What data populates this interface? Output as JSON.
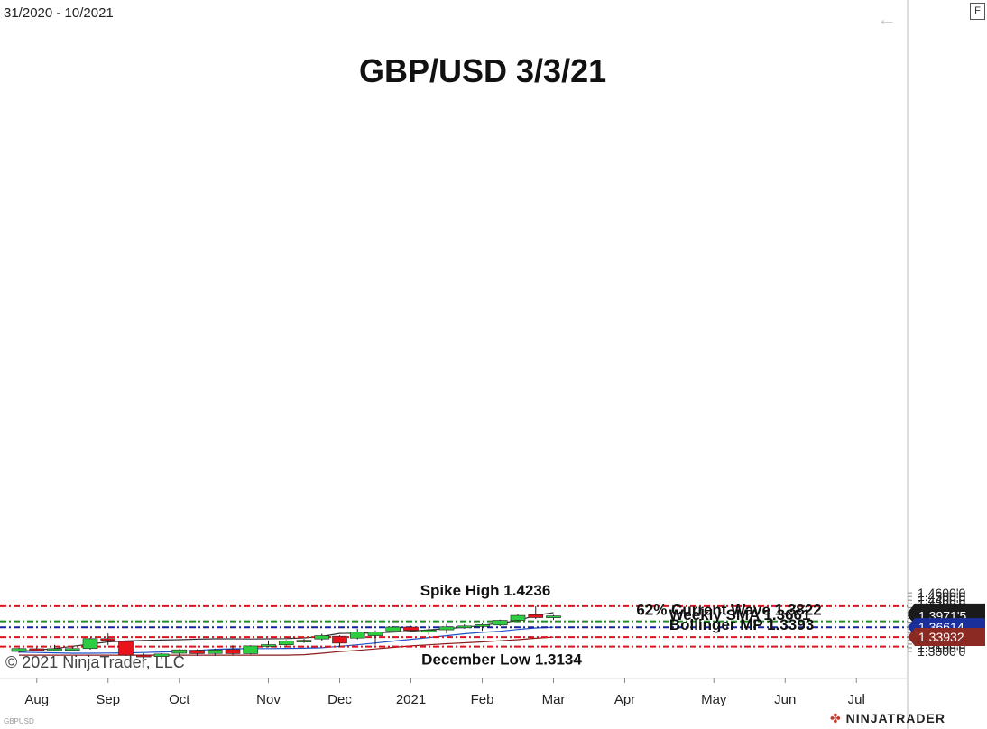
{
  "header": {
    "date_range": "31/2020 - 10/2021",
    "format_button": "F",
    "back_icon": "arrow-left-icon"
  },
  "footer": {
    "copyright": "© 2021 NinjaTrader, LLC",
    "brand": "NINJATRADER",
    "symbol_small": "GBPUSD"
  },
  "chart_data": {
    "type": "candlestick",
    "title": "GBP/USD 3/3/21",
    "ylim": [
      1.293,
      1.468
    ],
    "y_ticks": [
      {
        "value": 1.46,
        "label": "1.4600'0"
      },
      {
        "value": 1.45,
        "label": "1.4500'0"
      },
      {
        "value": 1.44,
        "label": "1.4400'0"
      },
      {
        "value": 1.43,
        "label": "1.4300'0"
      },
      {
        "value": 1.42,
        "label": "1.4200'0"
      },
      {
        "value": 1.41,
        "label": "1.4100'0"
      },
      {
        "value": 1.4,
        "label": "1.4000'0"
      },
      {
        "value": 1.39,
        "label": "1.3900'0"
      },
      {
        "value": 1.38,
        "label": "1.3800'0"
      },
      {
        "value": 1.37,
        "label": "1.3700'0"
      },
      {
        "value": 1.36,
        "label": "1.3600'0"
      },
      {
        "value": 1.35,
        "label": "1.3500'0"
      },
      {
        "value": 1.33,
        "label": "1.3300'0"
      },
      {
        "value": 1.32,
        "label": "1.3200'0"
      },
      {
        "value": 1.31,
        "label": "1.3100'0"
      },
      {
        "value": 1.3,
        "label": "1.3000'0"
      }
    ],
    "x_ticks": [
      "Aug",
      "Sep",
      "Oct",
      "Nov",
      "Dec",
      "2021",
      "Feb",
      "Mar",
      "Apr",
      "May",
      "Jun",
      "Jul"
    ],
    "x_tick_weeks": [
      1,
      5,
      9,
      14,
      18,
      22,
      26,
      30,
      34,
      39,
      43,
      47
    ],
    "candles": [
      {
        "o": 1.3,
        "h": 1.31,
        "l": 1.296,
        "c": 1.308
      },
      {
        "o": 1.3075,
        "h": 1.311,
        "l": 1.301,
        "c": 1.305
      },
      {
        "o": 1.305,
        "h": 1.318,
        "l": 1.3,
        "c": 1.3075
      },
      {
        "o": 1.306,
        "h": 1.314,
        "l": 1.302,
        "c": 1.308
      },
      {
        "o": 1.308,
        "h": 1.337,
        "l": 1.305,
        "c": 1.335
      },
      {
        "o": 1.335,
        "h": 1.349,
        "l": 1.317,
        "c": 1.33
      },
      {
        "o": 1.327,
        "h": 1.3285,
        "l": 1.288,
        "c": 1.29
      },
      {
        "o": 1.29,
        "h": 1.295,
        "l": 1.28,
        "c": 1.286
      },
      {
        "o": 1.286,
        "h": 1.295,
        "l": 1.28,
        "c": 1.293
      },
      {
        "o": 1.295,
        "h": 1.306,
        "l": 1.288,
        "c": 1.3045
      },
      {
        "o": 1.3035,
        "h": 1.306,
        "l": 1.288,
        "c": 1.294
      },
      {
        "o": 1.2945,
        "h": 1.308,
        "l": 1.288,
        "c": 1.304
      },
      {
        "o": 1.3055,
        "h": 1.317,
        "l": 1.289,
        "c": 1.294
      },
      {
        "o": 1.294,
        "h": 1.317,
        "l": 1.292,
        "c": 1.315
      },
      {
        "o": 1.315,
        "h": 1.33,
        "l": 1.311,
        "c": 1.3185
      },
      {
        "o": 1.318,
        "h": 1.331,
        "l": 1.316,
        "c": 1.3285
      },
      {
        "o": 1.329,
        "h": 1.334,
        "l": 1.323,
        "c": 1.3305
      },
      {
        "o": 1.334,
        "h": 1.348,
        "l": 1.329,
        "c": 1.343
      },
      {
        "o": 1.3415,
        "h": 1.344,
        "l": 1.313,
        "c": 1.3225
      },
      {
        "o": 1.3365,
        "h": 1.362,
        "l": 1.333,
        "c": 1.3525
      },
      {
        "o": 1.343,
        "h": 1.357,
        "l": 1.318,
        "c": 1.353
      },
      {
        "o": 1.3555,
        "h": 1.369,
        "l": 1.355,
        "c": 1.3665
      },
      {
        "o": 1.3665,
        "h": 1.37,
        "l": 1.354,
        "c": 1.3575
      },
      {
        "o": 1.357,
        "h": 1.371,
        "l": 1.345,
        "c": 1.358
      },
      {
        "o": 1.359,
        "h": 1.374,
        "l": 1.349,
        "c": 1.367
      },
      {
        "o": 1.368,
        "h": 1.374,
        "l": 1.362,
        "c": 1.3695
      },
      {
        "o": 1.371,
        "h": 1.376,
        "l": 1.3565,
        "c": 1.373
      },
      {
        "o": 1.372,
        "h": 1.387,
        "l": 1.369,
        "c": 1.385
      },
      {
        "o": 1.385,
        "h": 1.402,
        "l": 1.382,
        "c": 1.3985
      },
      {
        "o": 1.4005,
        "h": 1.4236,
        "l": 1.389,
        "c": 1.3925
      },
      {
        "o": 1.3925,
        "h": 1.4,
        "l": 1.386,
        "c": 1.3971
      }
    ],
    "sma_black": [
      1.3,
      1.304,
      1.308,
      1.314,
      1.32,
      1.326,
      1.3285,
      1.33,
      1.331,
      1.332,
      1.3335,
      1.3345,
      1.3345,
      1.334,
      1.3345,
      1.335,
      1.337,
      1.341,
      1.349,
      1.3495,
      1.3505,
      1.3525,
      1.355,
      1.359,
      1.362,
      1.366,
      1.371,
      1.3775,
      1.384,
      1.399,
      1.406
    ],
    "sma_blue": [
      1.298,
      1.297,
      1.296,
      1.295,
      1.295,
      1.2955,
      1.296,
      1.297,
      1.2985,
      1.3,
      1.303,
      1.306,
      1.3075,
      1.308,
      1.308,
      1.3085,
      1.309,
      1.31,
      1.314,
      1.318,
      1.323,
      1.328,
      1.333,
      1.338,
      1.343,
      1.348,
      1.352,
      1.355,
      1.36,
      1.364,
      1.3661
    ],
    "sma_red": [
      1.29,
      1.29,
      1.29,
      1.29,
      1.29,
      1.29,
      1.29,
      1.29,
      1.29,
      1.29,
      1.29,
      1.29,
      1.29,
      1.29,
      1.29,
      1.29,
      1.291,
      1.295,
      1.2995,
      1.303,
      1.307,
      1.311,
      1.315,
      1.318,
      1.321,
      1.3235,
      1.326,
      1.329,
      1.332,
      1.336,
      1.3393
    ],
    "hlines": [
      {
        "value": 1.4236,
        "label": "Spike High 1.4236",
        "color": "#d9141e"
      },
      {
        "value": 1.3822,
        "label": "62% Current Wave 1.3822",
        "color": "#1e8a2a"
      },
      {
        "value": 1.3661,
        "label": "Weekly SMA 1.3661",
        "color": "#15219e"
      },
      {
        "value": 1.3393,
        "label": "Bollinger MP 1.3393",
        "color": "#d9141e"
      },
      {
        "value": 1.3134,
        "label": "December Low 1.3134",
        "color": "#d9141e"
      }
    ],
    "price_markers": [
      {
        "value": 1.4064,
        "label": "1.40640",
        "bg": "#1a1a1a"
      },
      {
        "value": 1.39715,
        "label": "1.3971'5",
        "bg": "#1a1a1a"
      },
      {
        "value": 1.36614,
        "label": "1.36614",
        "bg": "#1b2f9a"
      },
      {
        "value": 1.33932,
        "label": "1.33932",
        "bg": "#8b2a22"
      }
    ],
    "colors": {
      "up": "#2ecc40",
      "down": "#e8131b",
      "sma_black": "#333333",
      "sma_blue": "#1f4fc8",
      "sma_red": "#8b1a1a",
      "grid": "#e6e6e6"
    }
  }
}
